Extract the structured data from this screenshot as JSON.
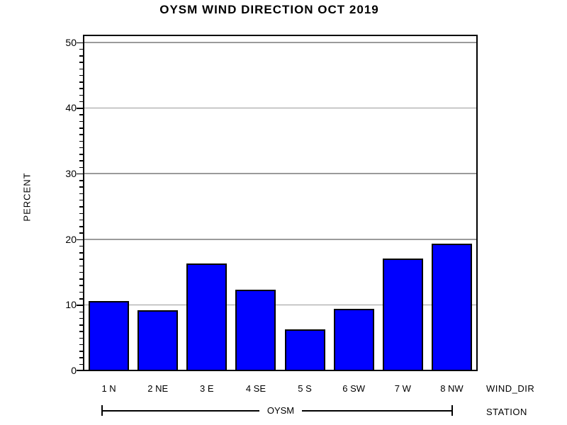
{
  "title": "OYSM WIND DIRECTION OCT 2019",
  "chart_data": {
    "type": "bar",
    "title": "OYSM WIND DIRECTION OCT 2019",
    "categories": [
      "1 N",
      "2 NE",
      "3 E",
      "4 SE",
      "5 S",
      "6 SW",
      "7 W",
      "8 NW"
    ],
    "values": [
      10.5,
      9.1,
      16.2,
      12.2,
      6.2,
      9.3,
      16.9,
      19.2
    ],
    "xlabel": "WIND_DIR",
    "ylabel": "PERCENT",
    "ylim": [
      0,
      50
    ],
    "yticks": [
      0,
      10,
      20,
      30,
      40,
      50
    ],
    "minor_tick_step": 1,
    "grid": "horizontal-major",
    "legend": "none",
    "bar_color": "#0000ff",
    "bar_border_color": "#000000",
    "gridline_color": "#9b9b9b",
    "group_axis": {
      "label": "STATION",
      "group": "OYSM"
    }
  }
}
